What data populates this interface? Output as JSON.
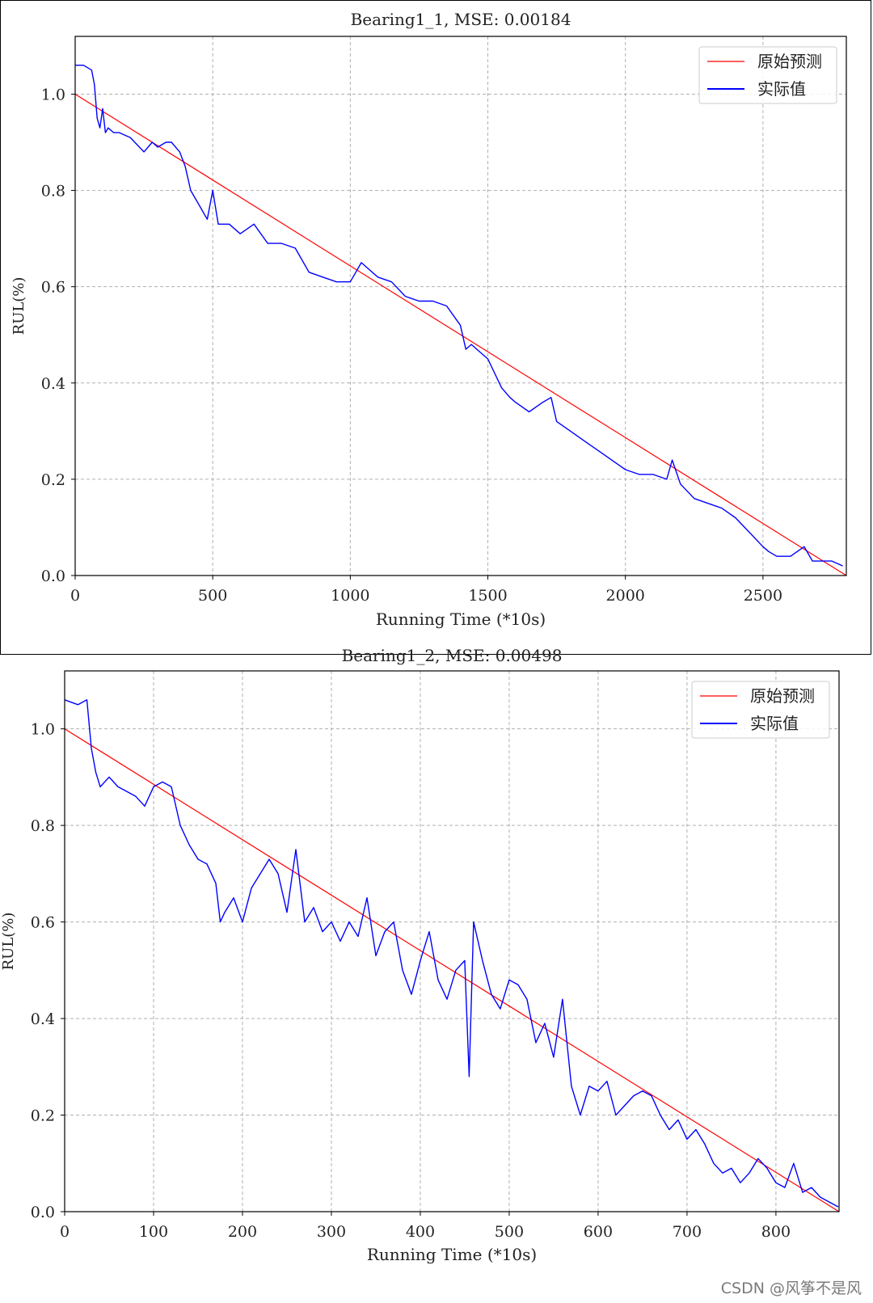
{
  "watermark": "CSDN @风筝不是风",
  "chart_data": [
    {
      "type": "line",
      "title": "Bearing1_1, MSE: 0.00184",
      "xlabel": "Running Time (*10s)",
      "ylabel": "RUL(%)",
      "xlim": [
        0,
        2803
      ],
      "ylim": [
        0,
        1.12
      ],
      "xticks": [
        0,
        500,
        1000,
        1500,
        2000,
        2500
      ],
      "xtick_labels": [
        "0",
        "500",
        "1000",
        "1500",
        "2000",
        "2500"
      ],
      "yticks": [
        0,
        0.2,
        0.4,
        0.6,
        0.8,
        1.0
      ],
      "ytick_labels": [
        "0.0",
        "0.2",
        "0.4",
        "0.6",
        "0.8",
        "1.0"
      ],
      "grid": true,
      "legend": "top-right",
      "series": [
        {
          "name": "原始预测",
          "color": "#ff0000",
          "x": [
            0,
            2803
          ],
          "y": [
            1.0,
            0.0
          ]
        },
        {
          "name": "实际值",
          "color": "#0000ff",
          "x": [
            0,
            30,
            60,
            70,
            80,
            90,
            100,
            110,
            120,
            140,
            160,
            200,
            250,
            280,
            300,
            330,
            350,
            380,
            400,
            420,
            440,
            460,
            480,
            500,
            520,
            560,
            600,
            650,
            700,
            750,
            800,
            850,
            900,
            950,
            1000,
            1020,
            1040,
            1060,
            1100,
            1150,
            1200,
            1250,
            1300,
            1350,
            1400,
            1420,
            1440,
            1460,
            1500,
            1550,
            1580,
            1600,
            1650,
            1700,
            1730,
            1750,
            1800,
            1850,
            1900,
            1950,
            2000,
            2050,
            2100,
            2150,
            2170,
            2200,
            2250,
            2300,
            2350,
            2400,
            2450,
            2500,
            2520,
            2550,
            2600,
            2650,
            2680,
            2700,
            2750,
            2790
          ],
          "y": [
            1.06,
            1.06,
            1.05,
            1.02,
            0.95,
            0.93,
            0.97,
            0.92,
            0.93,
            0.92,
            0.92,
            0.91,
            0.88,
            0.9,
            0.89,
            0.9,
            0.9,
            0.88,
            0.85,
            0.8,
            0.78,
            0.76,
            0.74,
            0.8,
            0.73,
            0.73,
            0.71,
            0.73,
            0.69,
            0.69,
            0.68,
            0.63,
            0.62,
            0.61,
            0.61,
            0.63,
            0.65,
            0.64,
            0.62,
            0.61,
            0.58,
            0.57,
            0.57,
            0.56,
            0.52,
            0.47,
            0.48,
            0.47,
            0.45,
            0.39,
            0.37,
            0.36,
            0.34,
            0.36,
            0.37,
            0.32,
            0.3,
            0.28,
            0.26,
            0.24,
            0.22,
            0.21,
            0.21,
            0.2,
            0.24,
            0.19,
            0.16,
            0.15,
            0.14,
            0.12,
            0.09,
            0.06,
            0.05,
            0.04,
            0.04,
            0.06,
            0.03,
            0.03,
            0.03,
            0.02
          ]
        }
      ]
    },
    {
      "type": "line",
      "title": "Bearing1_2, MSE: 0.00498",
      "xlabel": "Running Time (*10s)",
      "ylabel": "RUL(%)",
      "xlim": [
        0,
        871
      ],
      "ylim": [
        0,
        1.12
      ],
      "xticks": [
        0,
        100,
        200,
        300,
        400,
        500,
        600,
        700,
        800
      ],
      "xtick_labels": [
        "0",
        "100",
        "200",
        "300",
        "400",
        "500",
        "600",
        "700",
        "800"
      ],
      "yticks": [
        0,
        0.2,
        0.4,
        0.6,
        0.8,
        1.0
      ],
      "ytick_labels": [
        "0.0",
        "0.2",
        "0.4",
        "0.6",
        "0.8",
        "1.0"
      ],
      "grid": true,
      "legend": "top-right",
      "series": [
        {
          "name": "原始预测",
          "color": "#ff0000",
          "x": [
            0,
            871
          ],
          "y": [
            1.0,
            0.0
          ]
        },
        {
          "name": "实际值",
          "color": "#0000ff",
          "x": [
            0,
            15,
            25,
            30,
            35,
            40,
            50,
            60,
            70,
            80,
            90,
            100,
            110,
            120,
            130,
            140,
            150,
            160,
            170,
            175,
            180,
            190,
            200,
            210,
            220,
            230,
            240,
            250,
            260,
            270,
            280,
            290,
            300,
            310,
            320,
            330,
            340,
            350,
            360,
            370,
            380,
            390,
            400,
            410,
            420,
            430,
            440,
            450,
            455,
            460,
            470,
            480,
            490,
            500,
            510,
            520,
            530,
            540,
            550,
            560,
            570,
            580,
            590,
            600,
            610,
            620,
            630,
            640,
            650,
            660,
            670,
            680,
            690,
            700,
            710,
            720,
            730,
            740,
            750,
            760,
            770,
            780,
            790,
            800,
            810,
            820,
            830,
            840,
            850,
            860,
            870
          ],
          "y": [
            1.06,
            1.05,
            1.06,
            0.96,
            0.91,
            0.88,
            0.9,
            0.88,
            0.87,
            0.86,
            0.84,
            0.88,
            0.89,
            0.88,
            0.8,
            0.76,
            0.73,
            0.72,
            0.68,
            0.6,
            0.62,
            0.65,
            0.6,
            0.67,
            0.7,
            0.73,
            0.7,
            0.62,
            0.75,
            0.6,
            0.63,
            0.58,
            0.6,
            0.56,
            0.6,
            0.57,
            0.65,
            0.53,
            0.58,
            0.6,
            0.5,
            0.45,
            0.52,
            0.58,
            0.48,
            0.44,
            0.5,
            0.52,
            0.28,
            0.6,
            0.52,
            0.45,
            0.42,
            0.48,
            0.47,
            0.44,
            0.35,
            0.39,
            0.32,
            0.44,
            0.26,
            0.2,
            0.26,
            0.25,
            0.27,
            0.2,
            0.22,
            0.24,
            0.25,
            0.24,
            0.2,
            0.17,
            0.19,
            0.15,
            0.17,
            0.14,
            0.1,
            0.08,
            0.09,
            0.06,
            0.08,
            0.11,
            0.09,
            0.06,
            0.05,
            0.1,
            0.04,
            0.05,
            0.03,
            0.02,
            0.01
          ]
        }
      ]
    }
  ]
}
